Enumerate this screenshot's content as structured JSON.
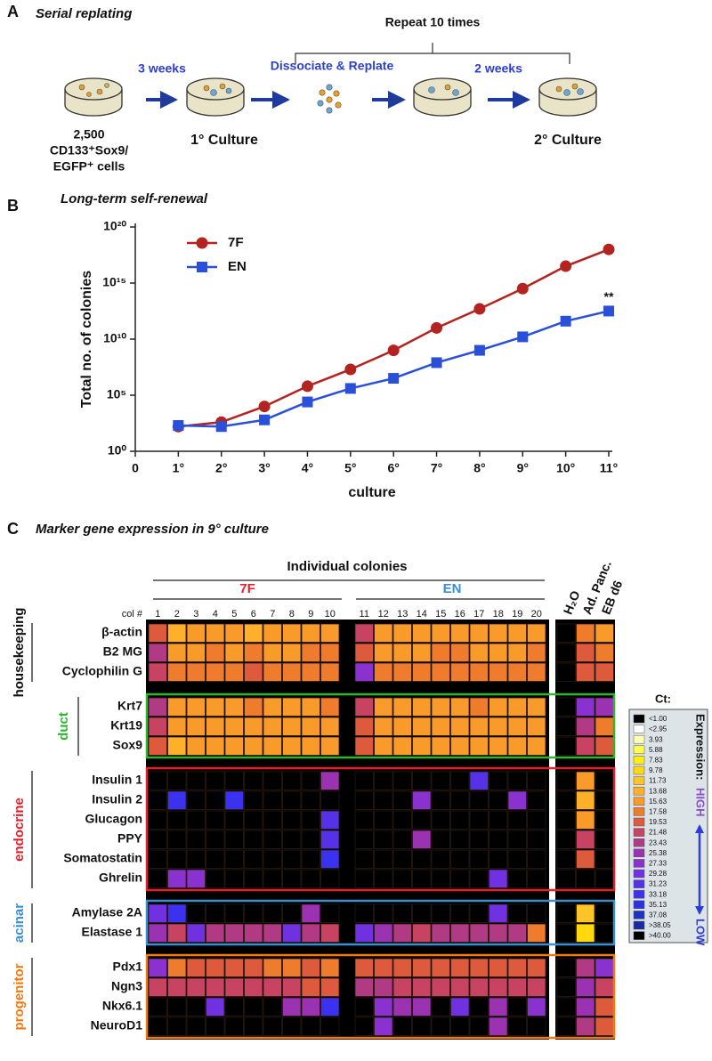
{
  "panel_labels": {
    "a": "A",
    "b": "B",
    "c": "C"
  },
  "panel_a": {
    "title": "Serial replating",
    "repeat": "Repeat 10 times",
    "step_1": "3 weeks",
    "step_2": "Dissociate & Replate",
    "step_3": "2 weeks",
    "start_lines": [
      "2,500",
      "CD133⁺Sox9/",
      "EGFP⁺ cells"
    ],
    "culture_1": "1° Culture",
    "culture_2": "2° Culture"
  },
  "chart_data": {
    "type": "line",
    "title": "Long-term self-renewal",
    "x_label": "culture",
    "y_label": "Total no. of colonies",
    "x": [
      1,
      2,
      3,
      4,
      5,
      6,
      7,
      8,
      9,
      10,
      11
    ],
    "xlim": [
      0,
      11
    ],
    "xticks": [
      0,
      {
        "value": 1,
        "label": "1°"
      },
      {
        "value": 2,
        "label": "2°"
      },
      {
        "value": 3,
        "label": "3°"
      },
      {
        "value": 4,
        "label": "4°"
      },
      {
        "value": 5,
        "label": "5°"
      },
      {
        "value": 6,
        "label": "6°"
      },
      {
        "value": 7,
        "label": "7°"
      },
      {
        "value": 8,
        "label": "8°"
      },
      {
        "value": 9,
        "label": "9°"
      },
      {
        "value": 10,
        "label": "10°"
      },
      {
        "value": 11,
        "label": "11°"
      }
    ],
    "ylim": [
      1,
      1e+20
    ],
    "yticks": [
      {
        "value": 1,
        "label": "10⁰"
      },
      {
        "value": 100000.0,
        "label": "10⁵"
      },
      {
        "value": 10000000000.0,
        "label": "10¹⁰"
      },
      {
        "value": 1000000000000000.0,
        "label": "10¹⁵"
      },
      {
        "value": 1e+20,
        "label": "10²⁰"
      }
    ],
    "log_scale": true,
    "legend": "upper left",
    "annotation": "**",
    "series": [
      {
        "name": "7F",
        "color": "#b3231f",
        "marker": "circle",
        "values": [
          160,
          400,
          10000.0,
          630000.0,
          20000000.0,
          1000000000.0,
          100000000000.0,
          5000000000000.0,
          320000000000000.0,
          3.2e+16,
          1e+18
        ]
      },
      {
        "name": "EN",
        "color": "#2a4fd8",
        "marker": "square",
        "values": [
          200,
          160,
          630,
          25000.0,
          400000.0,
          3200000.0,
          80000000.0,
          1000000000.0,
          16000000000.0,
          400000000000.0,
          3200000000000.0
        ]
      }
    ]
  },
  "panel_c": {
    "title": "Marker gene expression in 9° culture",
    "colonies_header": "Individual colonies",
    "group_7f": "7F",
    "group_en": "EN",
    "col_header": "col #",
    "columns": [
      "1",
      "2",
      "3",
      "4",
      "5",
      "6",
      "7",
      "8",
      "9",
      "10",
      "11",
      "12",
      "13",
      "14",
      "15",
      "16",
      "17",
      "18",
      "19",
      "20",
      "H₂O",
      "Ad. Panc.",
      "EB d6"
    ],
    "groups": [
      {
        "label": "housekeeping",
        "color": "#111111",
        "box": false,
        "rows": [
          {
            "gene": "β-actin",
            "values": [
              19.53,
              13.68,
              15.63,
              15.63,
              15.63,
              13.68,
              15.63,
              15.63,
              15.63,
              15.63,
              21.48,
              15.63,
              15.63,
              15.63,
              15.63,
              15.63,
              15.63,
              15.63,
              15.63,
              15.63,
              40,
              17.58,
              15.63
            ]
          },
          {
            "gene": "B2 MG",
            "values": [
              23.43,
              15.63,
              15.63,
              17.58,
              15.63,
              17.58,
              15.63,
              15.63,
              17.58,
              17.58,
              19.53,
              15.63,
              15.63,
              15.63,
              17.58,
              17.58,
              15.63,
              15.63,
              15.63,
              17.58,
              40,
              19.53,
              17.58
            ]
          },
          {
            "gene": "Cyclophilin G",
            "values": [
              21.48,
              17.58,
              17.58,
              17.58,
              17.58,
              19.53,
              17.58,
              17.58,
              17.58,
              17.58,
              27.33,
              17.58,
              17.58,
              17.58,
              17.58,
              17.58,
              17.58,
              17.58,
              17.58,
              17.58,
              40,
              19.53,
              19.53
            ]
          }
        ]
      },
      {
        "label": "duct",
        "color": "#2fb52f",
        "box": true,
        "rows": [
          {
            "gene": "Krt7",
            "values": [
              23.43,
              15.63,
              15.63,
              15.63,
              15.63,
              17.58,
              15.63,
              15.63,
              15.63,
              17.58,
              21.48,
              15.63,
              15.63,
              15.63,
              15.63,
              15.63,
              17.58,
              15.63,
              15.63,
              15.63,
              40,
              27.33,
              25.38
            ]
          },
          {
            "gene": "Krt19",
            "values": [
              21.48,
              15.63,
              15.63,
              15.63,
              15.63,
              15.63,
              15.63,
              15.63,
              15.63,
              15.63,
              19.53,
              15.63,
              15.63,
              15.63,
              15.63,
              15.63,
              15.63,
              15.63,
              15.63,
              15.63,
              40,
              23.43,
              17.58
            ]
          },
          {
            "gene": "Sox9",
            "values": [
              19.53,
              13.68,
              15.63,
              15.63,
              15.63,
              15.63,
              15.63,
              15.63,
              15.63,
              15.63,
              19.53,
              15.63,
              15.63,
              15.63,
              15.63,
              15.63,
              15.63,
              15.63,
              15.63,
              15.63,
              40,
              21.48,
              19.53
            ]
          }
        ]
      },
      {
        "label": "endocrine",
        "color": "#e3202b",
        "box": true,
        "rows": [
          {
            "gene": "Insulin 1",
            "values": [
              40,
              40,
              40,
              40,
              40,
              40,
              40,
              40,
              40,
              25.38,
              40,
              40,
              40,
              40,
              40,
              40,
              31.23,
              40,
              40,
              40,
              40,
              15.63,
              40
            ]
          },
          {
            "gene": "Insulin 2",
            "values": [
              40,
              33.18,
              40,
              40,
              33.18,
              40,
              40,
              40,
              40,
              40,
              40,
              40,
              40,
              27.33,
              40,
              40,
              40,
              40,
              27.33,
              40,
              40,
              13.68,
              40
            ]
          },
          {
            "gene": "Glucagon",
            "values": [
              40,
              40,
              40,
              40,
              40,
              40,
              40,
              40,
              40,
              31.23,
              40,
              40,
              40,
              40,
              40,
              40,
              40,
              40,
              40,
              40,
              40,
              15.63,
              40
            ]
          },
          {
            "gene": "PPY",
            "values": [
              40,
              40,
              40,
              40,
              40,
              40,
              40,
              40,
              40,
              31.23,
              40,
              40,
              40,
              25.38,
              40,
              40,
              40,
              40,
              40,
              40,
              40,
              21.48,
              40
            ]
          },
          {
            "gene": "Somatostatin",
            "values": [
              40,
              40,
              40,
              40,
              40,
              40,
              40,
              40,
              40,
              33.18,
              40,
              40,
              40,
              40,
              40,
              40,
              40,
              40,
              40,
              40,
              40,
              19.53,
              40
            ]
          },
          {
            "gene": "Ghrelin",
            "values": [
              40,
              27.33,
              27.33,
              40,
              40,
              40,
              40,
              40,
              40,
              40,
              40,
              40,
              40,
              40,
              40,
              40,
              40,
              29.28,
              40,
              40,
              40,
              40,
              40
            ]
          }
        ]
      },
      {
        "label": "acinar",
        "color": "#3a8fd0",
        "box": true,
        "rows": [
          {
            "gene": "Amylase 2A",
            "values": [
              29.28,
              33.18,
              40,
              40,
              40,
              40,
              40,
              40,
              25.38,
              40,
              40,
              40,
              40,
              40,
              40,
              40,
              40,
              29.28,
              40,
              40,
              40,
              11.73,
              40
            ]
          },
          {
            "gene": "Elastase 1",
            "values": [
              25.38,
              21.48,
              29.28,
              23.43,
              23.43,
              23.43,
              23.43,
              29.28,
              23.43,
              21.48,
              29.28,
              25.38,
              23.43,
              21.48,
              23.43,
              23.43,
              23.43,
              23.43,
              23.43,
              17.58,
              40,
              9.78,
              40
            ]
          }
        ]
      },
      {
        "label": "progenitor",
        "color": "#f07a12",
        "box": true,
        "rows": [
          {
            "gene": "Pdx1",
            "values": [
              27.33,
              17.58,
              19.53,
              19.53,
              19.53,
              19.53,
              17.58,
              17.58,
              19.53,
              17.58,
              19.53,
              19.53,
              19.53,
              19.53,
              19.53,
              19.53,
              19.53,
              19.53,
              19.53,
              19.53,
              40,
              23.43,
              27.33
            ]
          },
          {
            "gene": "Ngn3",
            "values": [
              21.48,
              21.48,
              21.48,
              21.48,
              21.48,
              21.48,
              21.48,
              21.48,
              19.53,
              19.53,
              23.43,
              23.43,
              21.48,
              21.48,
              21.48,
              21.48,
              21.48,
              21.48,
              21.48,
              21.48,
              40,
              25.38,
              21.48
            ]
          },
          {
            "gene": "Nkx6.1",
            "values": [
              40,
              40,
              40,
              29.28,
              40,
              40,
              40,
              25.38,
              25.38,
              33.18,
              40,
              27.33,
              25.38,
              25.38,
              40,
              29.28,
              40,
              25.38,
              40,
              27.33,
              40,
              25.38,
              19.53
            ]
          },
          {
            "gene": "NeuroD1",
            "values": [
              40,
              40,
              40,
              40,
              40,
              40,
              40,
              40,
              40,
              40,
              40,
              27.33,
              40,
              40,
              40,
              40,
              40,
              25.38,
              40,
              40,
              40,
              23.43,
              19.53
            ]
          }
        ]
      }
    ],
    "ct_legend": {
      "title": "Ct:",
      "levels": [
        {
          "value": 1,
          "label": "<1.00",
          "color": "#000000"
        },
        {
          "value": 2.95,
          "label": "<2.95",
          "color": "#ffffff"
        },
        {
          "value": 3.93,
          "color": "#ffffb4"
        },
        {
          "value": 5.88,
          "color": "#ffff50"
        },
        {
          "value": 7.83,
          "color": "#ffee10"
        },
        {
          "value": 9.78,
          "color": "#ffd810"
        },
        {
          "value": 11.73,
          "color": "#ffc428"
        },
        {
          "value": 13.68,
          "color": "#ffb02a"
        },
        {
          "value": 15.63,
          "color": "#f99b2a"
        },
        {
          "value": 17.58,
          "color": "#ee7c2c"
        },
        {
          "value": 19.53,
          "color": "#de5a3c"
        },
        {
          "value": 21.48,
          "color": "#c84262"
        },
        {
          "value": 23.43,
          "color": "#b03a84"
        },
        {
          "value": 25.38,
          "color": "#9a32b2"
        },
        {
          "value": 27.33,
          "color": "#8a32d0"
        },
        {
          "value": 29.28,
          "color": "#7032e0"
        },
        {
          "value": 31.23,
          "color": "#5532e8"
        },
        {
          "value": 33.18,
          "color": "#3a32f0"
        },
        {
          "value": 35.13,
          "color": "#2a32e0"
        },
        {
          "value": 37.08,
          "color": "#2030c0"
        },
        {
          "value": 38.05,
          "label": ">38.05",
          "color": "#1a2aa0"
        },
        {
          "value": 40,
          "label": ">40.00",
          "color": "#000000"
        }
      ],
      "expression": "Expression:",
      "high": "HIGH",
      "low": "LOW"
    }
  }
}
